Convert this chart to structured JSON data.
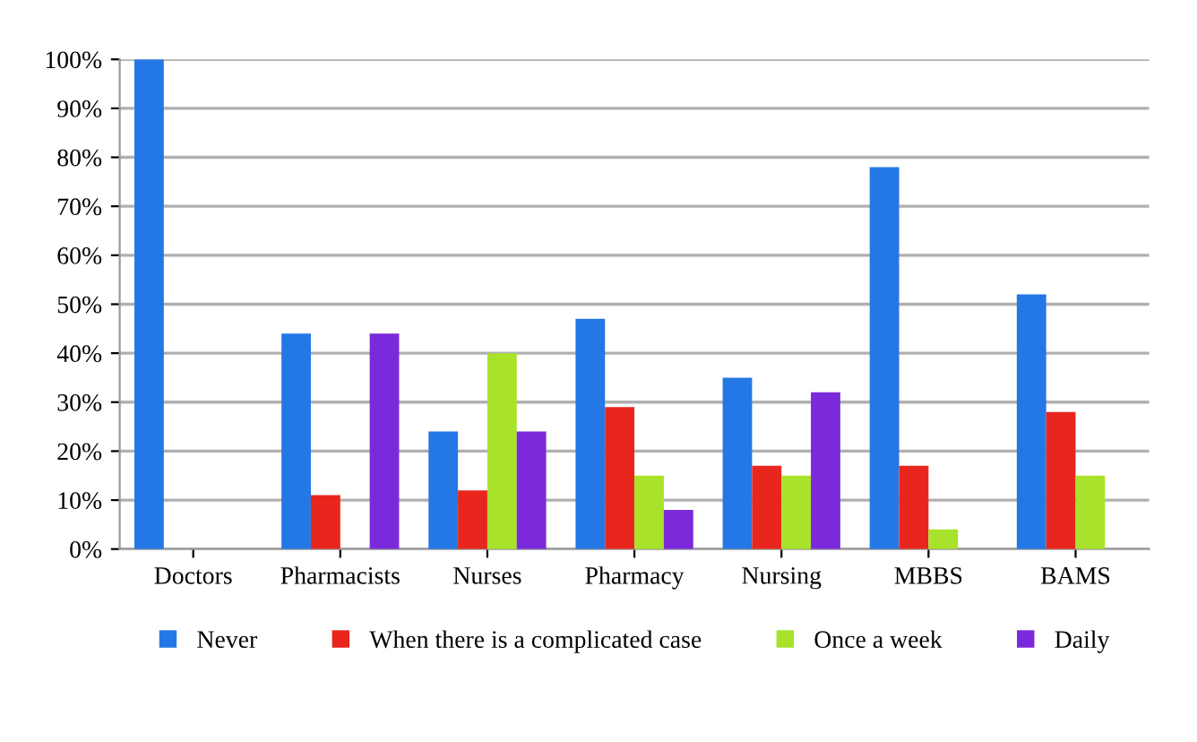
{
  "chart_data": {
    "type": "bar",
    "categories": [
      "Doctors",
      "Pharmacists",
      "Nurses",
      "Pharmacy",
      "Nursing",
      "MBBS",
      "BAMS"
    ],
    "series": [
      {
        "name": "Never",
        "color": "#2478e6",
        "values": [
          100,
          44,
          24,
          47,
          35,
          78,
          52
        ]
      },
      {
        "name": "When there is a complicated case",
        "color": "#e8261e",
        "values": [
          0,
          11,
          12,
          29,
          17,
          17,
          28
        ]
      },
      {
        "name": "Once a week",
        "color": "#a8e22a",
        "values": [
          0,
          0,
          40,
          15,
          15,
          4,
          15
        ]
      },
      {
        "name": "Daily",
        "color": "#7b2adb",
        "values": [
          0,
          44,
          24,
          8,
          32,
          0,
          0
        ]
      }
    ],
    "ylim": [
      0,
      100
    ],
    "yticks": [
      {
        "value": 0,
        "label": "0%"
      },
      {
        "value": 10,
        "label": "10%"
      },
      {
        "value": 20,
        "label": "20%"
      },
      {
        "value": 30,
        "label": "30%"
      },
      {
        "value": 40,
        "label": "40%"
      },
      {
        "value": 50,
        "label": "50%"
      },
      {
        "value": 60,
        "label": "60%"
      },
      {
        "value": 70,
        "label": "70%"
      },
      {
        "value": 80,
        "label": "80%"
      },
      {
        "value": 90,
        "label": "90%"
      },
      {
        "value": 100,
        "label": "100%"
      }
    ],
    "grid": "y",
    "legend": "bottom"
  }
}
